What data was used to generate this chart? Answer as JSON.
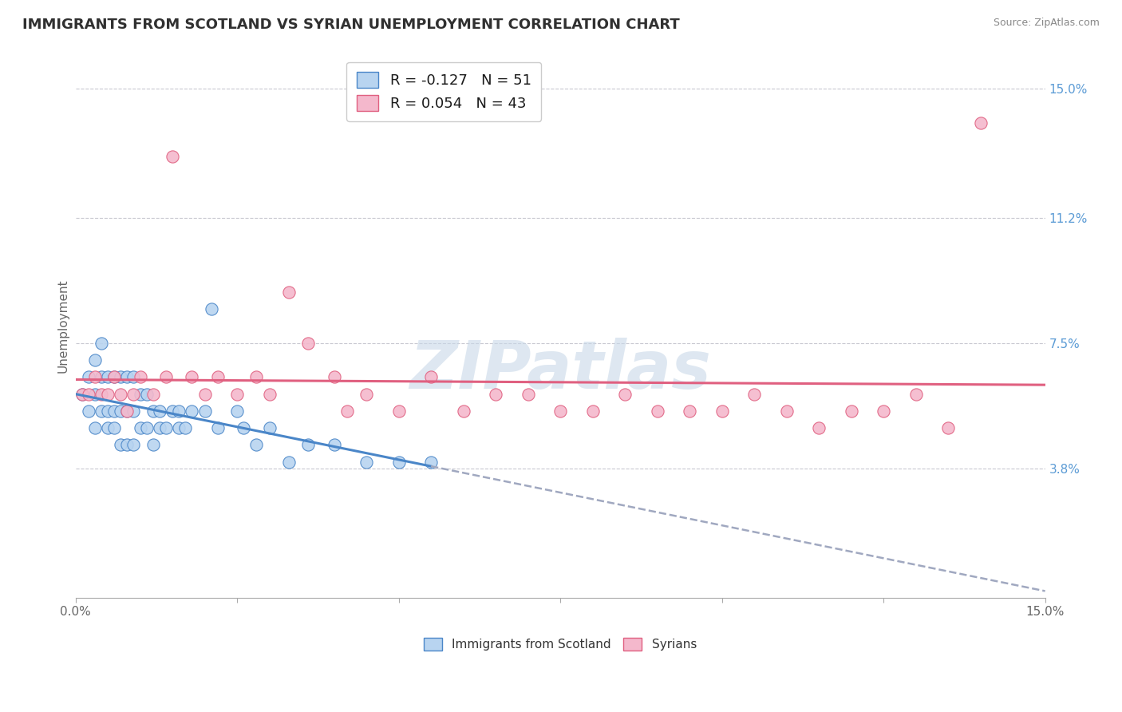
{
  "title": "IMMIGRANTS FROM SCOTLAND VS SYRIAN UNEMPLOYMENT CORRELATION CHART",
  "source": "Source: ZipAtlas.com",
  "ylabel": "Unemployment",
  "xlim": [
    0.0,
    0.15
  ],
  "ylim": [
    0.0,
    0.16
  ],
  "ytick_labels": [
    "3.8%",
    "7.5%",
    "11.2%",
    "15.0%"
  ],
  "ytick_values": [
    0.038,
    0.075,
    0.112,
    0.15
  ],
  "xtick_values": [
    0.0,
    0.025,
    0.05,
    0.075,
    0.1,
    0.125,
    0.15
  ],
  "xtick_labels_show": [
    "0.0%",
    "",
    "",
    "",
    "",
    "",
    "15.0%"
  ],
  "grid_color": "#c8c8d0",
  "background_color": "#ffffff",
  "scatter_blue_color": "#b8d4f0",
  "scatter_pink_color": "#f4b8cc",
  "line_blue_color": "#4a86c8",
  "line_pink_color": "#e06080",
  "line_dash_color": "#a0a8c0",
  "legend_r1": "R = -0.127",
  "legend_n1": "N = 51",
  "legend_r2": "R = 0.054",
  "legend_n2": "N = 43",
  "watermark": "ZIPatlas",
  "watermark_color": "#c8d8e8",
  "title_color": "#303030",
  "axis_label_color": "#5b9bd5",
  "legend_label1": "Immigrants from Scotland",
  "legend_label2": "Syrians",
  "blue_points_x": [
    0.001,
    0.002,
    0.002,
    0.003,
    0.003,
    0.003,
    0.004,
    0.004,
    0.004,
    0.005,
    0.005,
    0.005,
    0.006,
    0.006,
    0.006,
    0.007,
    0.007,
    0.007,
    0.008,
    0.008,
    0.008,
    0.009,
    0.009,
    0.009,
    0.01,
    0.01,
    0.011,
    0.011,
    0.012,
    0.012,
    0.013,
    0.013,
    0.014,
    0.015,
    0.016,
    0.016,
    0.017,
    0.018,
    0.02,
    0.021,
    0.022,
    0.025,
    0.026,
    0.028,
    0.03,
    0.033,
    0.036,
    0.04,
    0.045,
    0.05,
    0.055
  ],
  "blue_points_y": [
    0.06,
    0.055,
    0.065,
    0.05,
    0.06,
    0.07,
    0.055,
    0.065,
    0.075,
    0.05,
    0.055,
    0.065,
    0.05,
    0.055,
    0.065,
    0.045,
    0.055,
    0.065,
    0.045,
    0.055,
    0.065,
    0.045,
    0.055,
    0.065,
    0.05,
    0.06,
    0.05,
    0.06,
    0.045,
    0.055,
    0.05,
    0.055,
    0.05,
    0.055,
    0.05,
    0.055,
    0.05,
    0.055,
    0.055,
    0.085,
    0.05,
    0.055,
    0.05,
    0.045,
    0.05,
    0.04,
    0.045,
    0.045,
    0.04,
    0.04,
    0.04
  ],
  "pink_points_x": [
    0.001,
    0.002,
    0.003,
    0.004,
    0.005,
    0.006,
    0.007,
    0.008,
    0.009,
    0.01,
    0.012,
    0.014,
    0.015,
    0.018,
    0.02,
    0.022,
    0.025,
    0.028,
    0.03,
    0.033,
    0.036,
    0.04,
    0.042,
    0.045,
    0.05,
    0.055,
    0.06,
    0.065,
    0.07,
    0.075,
    0.08,
    0.085,
    0.09,
    0.095,
    0.1,
    0.105,
    0.11,
    0.115,
    0.12,
    0.125,
    0.13,
    0.135,
    0.14
  ],
  "pink_points_y": [
    0.06,
    0.06,
    0.065,
    0.06,
    0.06,
    0.065,
    0.06,
    0.055,
    0.06,
    0.065,
    0.06,
    0.065,
    0.13,
    0.065,
    0.06,
    0.065,
    0.06,
    0.065,
    0.06,
    0.09,
    0.075,
    0.065,
    0.055,
    0.06,
    0.055,
    0.065,
    0.055,
    0.06,
    0.06,
    0.055,
    0.055,
    0.06,
    0.055,
    0.055,
    0.055,
    0.06,
    0.055,
    0.05,
    0.055,
    0.055,
    0.06,
    0.05,
    0.14
  ]
}
